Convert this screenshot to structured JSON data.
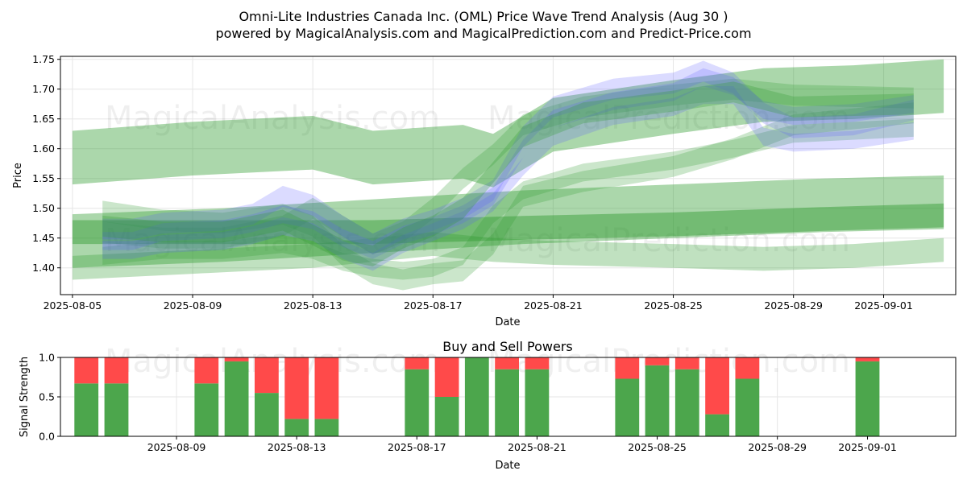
{
  "chart_data": [
    {
      "type": "area",
      "title_line1": "Omni-Lite Industries Canada Inc. (OML) Price Wave Trend Analysis (Aug 30 )",
      "title_line2": "powered by MagicalAnalysis.com and MagicalPrediction.com and Predict-Price.com",
      "xlabel": "Date",
      "ylabel": "Price",
      "ylim": [
        1.355,
        1.755
      ],
      "xlim_day": [
        -0.4,
        29.4
      ],
      "x_origin_date": "2025-08-05",
      "x_ticks": [
        {
          "day": 0,
          "label": "2025-08-05"
        },
        {
          "day": 4,
          "label": "2025-08-09"
        },
        {
          "day": 8,
          "label": "2025-08-13"
        },
        {
          "day": 12,
          "label": "2025-08-17"
        },
        {
          "day": 16,
          "label": "2025-08-21"
        },
        {
          "day": 20,
          "label": "2025-08-25"
        },
        {
          "day": 24,
          "label": "2025-08-29"
        },
        {
          "day": 27,
          "label": "2025-09-01"
        }
      ],
      "y_ticks": [
        1.4,
        1.45,
        1.5,
        1.55,
        1.6,
        1.65,
        1.7,
        1.75
      ],
      "y_tick_labels": [
        "1.40",
        "1.45",
        "1.50",
        "1.55",
        "1.60",
        "1.65",
        "1.70",
        "1.75"
      ],
      "grid": true,
      "watermarks": [
        "MagicalAnalysis.com",
        "MagicalPrediction.com"
      ],
      "colors": {
        "green": "#2e9a2e",
        "blue": "#5a5aff",
        "grid": "#e6e6e6"
      },
      "bands": [
        {
          "color": "green",
          "opacity": 0.4,
          "x": [
            0,
            4,
            8,
            10,
            13,
            14,
            16,
            20,
            23,
            26,
            29
          ],
          "center": [
            1.585,
            1.6,
            1.61,
            1.585,
            1.595,
            1.58,
            1.64,
            1.67,
            1.69,
            1.695,
            1.705
          ],
          "width": 0.09
        },
        {
          "color": "green",
          "opacity": 0.4,
          "x": [
            0,
            5,
            10,
            15,
            20,
            25,
            29
          ],
          "center": [
            1.445,
            1.455,
            1.47,
            1.485,
            1.495,
            1.505,
            1.51
          ],
          "width": 0.09
        },
        {
          "color": "green",
          "opacity": 0.45,
          "x": [
            0,
            5,
            10,
            15,
            20,
            25,
            29
          ],
          "center": [
            1.46,
            1.46,
            1.46,
            1.467,
            1.473,
            1.482,
            1.488
          ],
          "width": 0.04
        },
        {
          "color": "green",
          "opacity": 0.3,
          "x": [
            0,
            4,
            8,
            10,
            12,
            14,
            16,
            20,
            23,
            26,
            29
          ],
          "center": [
            1.4,
            1.41,
            1.42,
            1.43,
            1.44,
            1.43,
            1.425,
            1.42,
            1.415,
            1.42,
            1.43
          ],
          "width": 0.04
        },
        {
          "color": "green",
          "opacity": 0.25,
          "x": [
            1,
            3,
            5,
            7,
            8,
            9,
            10,
            11,
            12,
            13,
            14,
            15,
            17,
            20,
            22,
            24,
            28
          ],
          "center": [
            1.495,
            1.48,
            1.475,
            1.49,
            1.47,
            1.42,
            1.39,
            1.38,
            1.39,
            1.395,
            1.44,
            1.52,
            1.545,
            1.57,
            1.6,
            1.64,
            1.66
          ],
          "width": 0.035
        },
        {
          "color": "green",
          "opacity": 0.25,
          "x": [
            1,
            3,
            5,
            7,
            8,
            9,
            10,
            11,
            12,
            13,
            14,
            15,
            17,
            20,
            22,
            24,
            28
          ],
          "center": [
            1.46,
            1.45,
            1.45,
            1.47,
            1.5,
            1.47,
            1.44,
            1.46,
            1.5,
            1.55,
            1.59,
            1.64,
            1.67,
            1.69,
            1.7,
            1.69,
            1.685
          ],
          "width": 0.035
        },
        {
          "color": "green",
          "opacity": 0.25,
          "x": [
            1,
            3,
            5,
            7,
            8,
            9,
            10,
            11,
            12,
            13,
            14,
            15,
            17,
            20,
            22,
            24,
            28
          ],
          "center": [
            1.42,
            1.43,
            1.43,
            1.44,
            1.43,
            1.41,
            1.4,
            1.395,
            1.4,
            1.42,
            1.49,
            1.53,
            1.56,
            1.58,
            1.6,
            1.625,
            1.635
          ],
          "width": 0.03
        },
        {
          "color": "blue",
          "opacity": 0.22,
          "x": [
            1,
            2,
            3,
            5,
            6,
            7,
            8,
            9,
            10,
            11,
            12,
            13,
            14,
            15,
            16,
            18,
            20,
            21,
            22,
            23,
            24,
            26,
            28
          ],
          "center": [
            1.465,
            1.465,
            1.475,
            1.48,
            1.49,
            1.52,
            1.505,
            1.47,
            1.44,
            1.465,
            1.48,
            1.5,
            1.53,
            1.62,
            1.67,
            1.7,
            1.71,
            1.73,
            1.71,
            1.66,
            1.635,
            1.64,
            1.665
          ],
          "width": 0.035
        },
        {
          "color": "blue",
          "opacity": 0.22,
          "x": [
            1,
            2,
            3,
            5,
            6,
            7,
            8,
            9,
            10,
            11,
            12,
            13,
            14,
            15,
            16,
            18,
            20,
            21,
            22,
            23,
            24,
            26,
            28
          ],
          "center": [
            1.445,
            1.445,
            1.46,
            1.465,
            1.475,
            1.49,
            1.48,
            1.45,
            1.43,
            1.455,
            1.47,
            1.49,
            1.52,
            1.6,
            1.65,
            1.68,
            1.695,
            1.72,
            1.705,
            1.665,
            1.655,
            1.66,
            1.675
          ],
          "width": 0.03
        },
        {
          "color": "blue",
          "opacity": 0.22,
          "x": [
            1,
            2,
            3,
            5,
            6,
            7,
            8,
            9,
            10,
            11,
            12,
            13,
            14,
            15,
            16,
            18,
            20,
            21,
            22,
            23,
            24,
            26,
            28
          ],
          "center": [
            1.43,
            1.43,
            1.44,
            1.445,
            1.455,
            1.47,
            1.46,
            1.43,
            1.41,
            1.44,
            1.46,
            1.48,
            1.51,
            1.57,
            1.62,
            1.655,
            1.67,
            1.69,
            1.69,
            1.62,
            1.61,
            1.615,
            1.63
          ],
          "width": 0.03
        },
        {
          "color": "green",
          "opacity": 0.28,
          "x": [
            1,
            3,
            5,
            7,
            8,
            9,
            10,
            11,
            12,
            13,
            14,
            15,
            17,
            20,
            22,
            24,
            28
          ],
          "center": [
            1.47,
            1.46,
            1.46,
            1.48,
            1.455,
            1.43,
            1.42,
            1.45,
            1.47,
            1.5,
            1.56,
            1.62,
            1.66,
            1.68,
            1.695,
            1.67,
            1.675
          ],
          "width": 0.035
        }
      ]
    },
    {
      "type": "bar",
      "title": "Buy and Sell Powers",
      "xlabel": "Date",
      "ylabel": "Signal Strength",
      "ylim": [
        0,
        1
      ],
      "xlim_day": [
        -0.4,
        29.4
      ],
      "y_ticks": [
        0.0,
        0.5,
        1.0
      ],
      "y_tick_labels": [
        "0.0",
        "0.5",
        "1.0"
      ],
      "x_ticks": [
        {
          "day": 4,
          "label": "2025-08-09"
        },
        {
          "day": 8,
          "label": "2025-08-13"
        },
        {
          "day": 12,
          "label": "2025-08-17"
        },
        {
          "day": 16,
          "label": "2025-08-21"
        },
        {
          "day": 20,
          "label": "2025-08-25"
        },
        {
          "day": 24,
          "label": "2025-08-29"
        },
        {
          "day": 27,
          "label": "2025-09-01"
        }
      ],
      "series": [
        {
          "name": "Buy",
          "color": "#4ca64c",
          "days": [
            1,
            2,
            5,
            6,
            7,
            8,
            9,
            12,
            13,
            14,
            15,
            16,
            19,
            20,
            21,
            22,
            23,
            27
          ],
          "values": [
            0.67,
            0.67,
            0.67,
            0.95,
            0.55,
            0.22,
            0.22,
            0.85,
            0.5,
            1.0,
            0.85,
            0.85,
            0.73,
            0.9,
            0.85,
            0.28,
            0.73,
            0.95
          ]
        },
        {
          "name": "Sell",
          "color": "#ff4a4a",
          "days": [
            1,
            2,
            5,
            6,
            7,
            8,
            9,
            12,
            13,
            14,
            15,
            16,
            19,
            20,
            21,
            22,
            23,
            27
          ],
          "values": [
            0.33,
            0.33,
            0.33,
            0.05,
            0.45,
            0.78,
            0.78,
            0.15,
            0.5,
            0.0,
            0.15,
            0.15,
            0.27,
            0.1,
            0.15,
            0.72,
            0.27,
            0.05
          ]
        }
      ],
      "grid": true,
      "watermarks": [
        "MagicalAnalysis.com",
        "MagicalPrediction.com"
      ]
    }
  ]
}
